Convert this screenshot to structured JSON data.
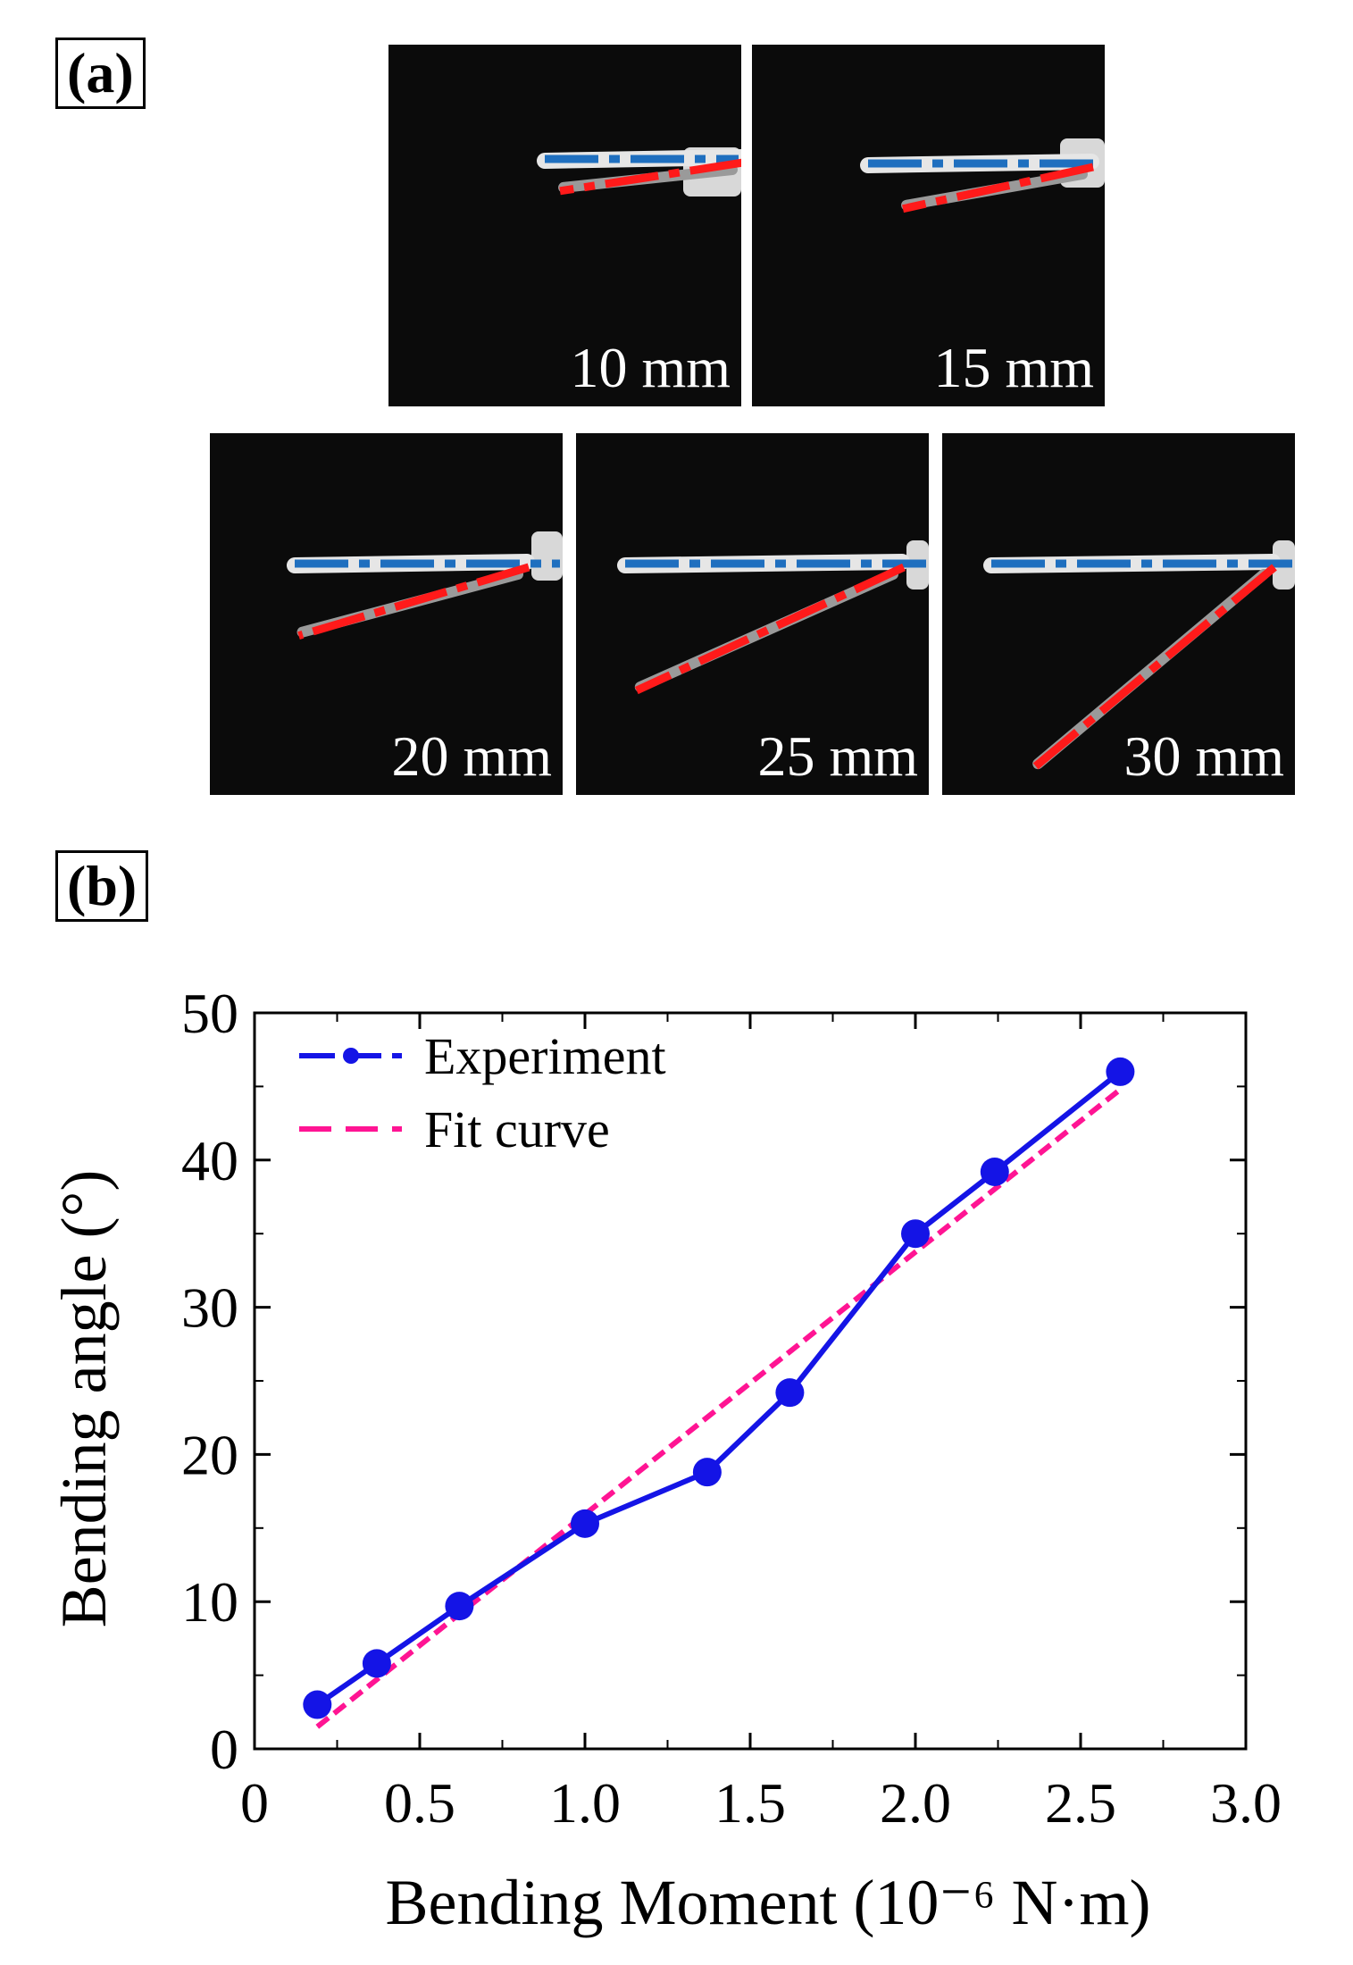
{
  "panels": {
    "a": "(a)",
    "b": "(b)"
  },
  "photos": [
    {
      "distance": "10 mm",
      "bend": 6
    },
    {
      "distance": "15 mm",
      "bend": 10
    },
    {
      "distance": "20 mm",
      "bend": 15
    },
    {
      "distance": "25 mm",
      "bend": 24
    },
    {
      "distance": "30 mm",
      "bend": 40
    }
  ],
  "colors": {
    "reference_line": "#1f6fbf",
    "bent_line": "#ff1a1a",
    "experiment": "#1414e6",
    "fit": "#ff1493"
  },
  "chart_data": {
    "type": "line",
    "xlabel": "Bending Moment (10⁻⁶ N·m)",
    "ylabel": "Bending angle (°)",
    "xlim": [
      0,
      3.0
    ],
    "ylim": [
      0,
      50
    ],
    "xticks": [
      "0",
      "0.5",
      "1.0",
      "1.5",
      "2.0",
      "2.5",
      "3.0"
    ],
    "yticks": [
      "0",
      "10",
      "20",
      "30",
      "40",
      "50"
    ],
    "legend_position": "top-left",
    "grid": false,
    "series": [
      {
        "name": "Experiment",
        "style": "solid-markers",
        "x": [
          0.19,
          0.37,
          0.62,
          1.0,
          1.37,
          1.62,
          2.0,
          2.24,
          2.62
        ],
        "y": [
          3.0,
          5.8,
          9.7,
          15.3,
          18.8,
          24.2,
          35.0,
          39.2,
          46.0
        ]
      },
      {
        "name": "Fit curve",
        "style": "dashed",
        "x": [
          0.19,
          2.62
        ],
        "y": [
          1.5,
          44.8
        ]
      }
    ]
  }
}
